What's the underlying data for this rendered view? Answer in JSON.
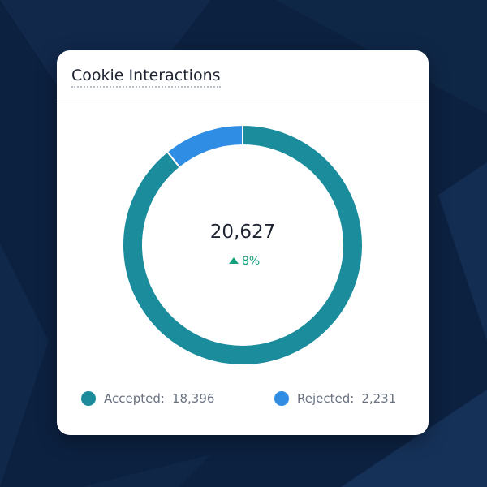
{
  "chart_data": {
    "type": "donut",
    "title": "Cookie Interactions",
    "total": {
      "value": 20627,
      "label": "20,627"
    },
    "change": {
      "value": 8,
      "label": "8%"
    },
    "series": [
      {
        "name": "Accepted",
        "color": "#1a8c9c",
        "values": [
          18396
        ],
        "value_labels": [
          "18,396"
        ]
      },
      {
        "name": "Rejected",
        "color": "#2f8de4",
        "values": [
          2231
        ],
        "value_labels": [
          "2,231"
        ]
      }
    ]
  }
}
